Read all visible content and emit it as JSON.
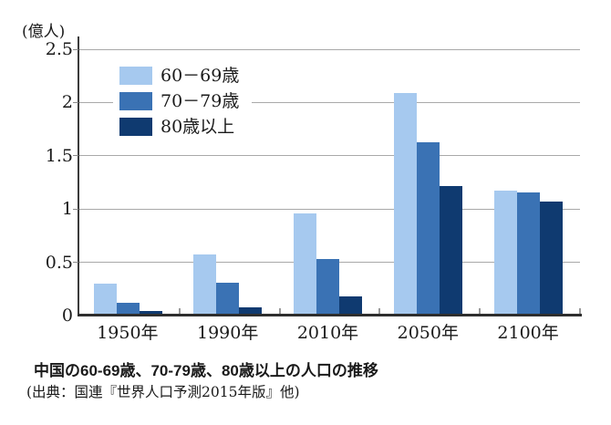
{
  "chart_data": {
    "type": "bar",
    "title": "中国の60-69歳、70-79歳、80歳以上の人口の推移",
    "unit_label": "(億人)",
    "categories": [
      "1950年",
      "1990年",
      "2010年",
      "2050年",
      "2100年"
    ],
    "series": [
      {
        "name": "60－69歳",
        "color": "#a6c9ef",
        "values": [
          0.3,
          0.57,
          0.96,
          2.09,
          1.17
        ]
      },
      {
        "name": "70－79歳",
        "color": "#3a72b4",
        "values": [
          0.12,
          0.31,
          0.53,
          1.63,
          1.16
        ]
      },
      {
        "name": "80歳以上",
        "color": "#0f3a70",
        "values": [
          0.04,
          0.08,
          0.18,
          1.22,
          1.07
        ]
      }
    ],
    "ylim": [
      0,
      2.5
    ],
    "y_tick_values": [
      0,
      0.5,
      1,
      1.5,
      2,
      2.5
    ],
    "y_tick_labels": [
      "0",
      "0.5",
      "1",
      "1.5",
      "2",
      "2.5"
    ],
    "grid": true,
    "legend_position": "inside-top-left"
  },
  "caption": {
    "title": "中国の60-69歳、70-79歳、80歳以上の人口の推移",
    "source": "(出典：国連『世界人口予測2015年版』他)"
  },
  "colors": {
    "background": "#ffffff",
    "axis": "#3b3b3b",
    "gridline": "#a9a9a9",
    "tick": "#9a9a9a",
    "text": "#1a1a1a"
  }
}
